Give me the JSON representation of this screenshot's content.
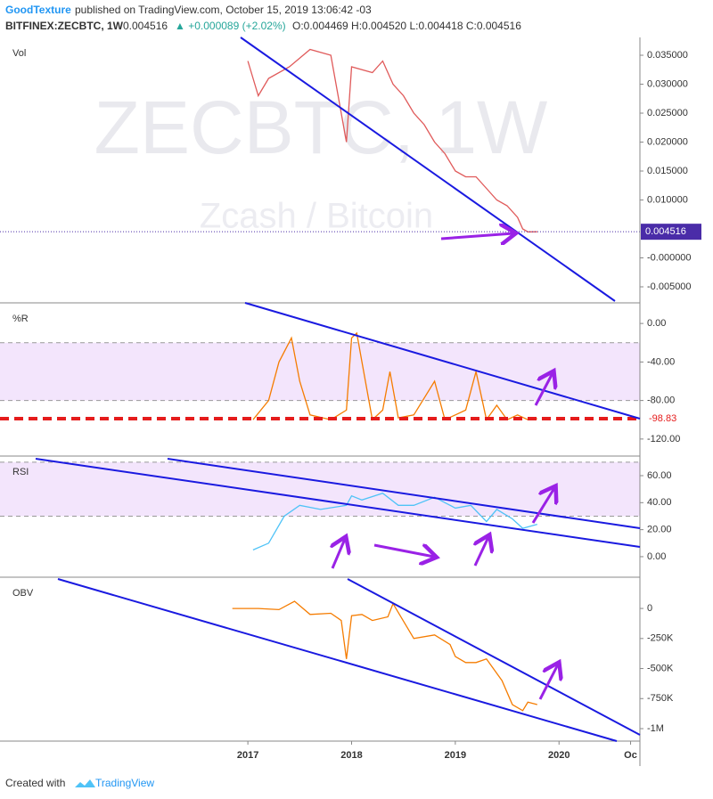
{
  "header": {
    "author": "GoodTexture",
    "published": "published on TradingView.com, October 15, 2019 13:06:42 -03",
    "symbol": "BITFINEX:ZECBTC, 1W",
    "last": "0.004516",
    "change": "▲ +0.000089 (+2.02%)",
    "ohlc": "O:0.004469 H:0.004520 L:0.004418 C:0.004516"
  },
  "watermark": {
    "symbol": "ZECBTC, 1W",
    "description": "Zcash / Bitcoin"
  },
  "footer": {
    "created": "Created with",
    "brand": "TradingView"
  },
  "chart_data": [
    {
      "type": "line",
      "title": "Vol",
      "last_value_style": "box",
      "x": [
        2017.0,
        2017.1,
        2017.2,
        2017.4,
        2017.6,
        2017.8,
        2017.95,
        2018.0,
        2018.2,
        2018.3,
        2018.4,
        2018.5,
        2018.6,
        2018.7,
        2018.8,
        2018.9,
        2019.0,
        2019.1,
        2019.2,
        2019.3,
        2019.4,
        2019.5,
        2019.6,
        2019.65,
        2019.7,
        2019.79
      ],
      "series": [
        {
          "name": "ZECBTC",
          "color": "#e05a5a",
          "values": [
            0.034,
            0.028,
            0.031,
            0.033,
            0.036,
            0.035,
            0.02,
            0.033,
            0.032,
            0.034,
            0.03,
            0.028,
            0.025,
            0.023,
            0.02,
            0.018,
            0.015,
            0.014,
            0.014,
            0.012,
            0.01,
            0.009,
            0.007,
            0.005,
            0.0045,
            0.004516
          ]
        }
      ],
      "ylim": [
        -0.00746,
        0.03808
      ],
      "yticks": [
        {
          "value": 0.035,
          "label": "0.035000"
        },
        {
          "value": 0.03,
          "label": "0.030000"
        },
        {
          "value": 0.025,
          "label": "0.025000"
        },
        {
          "value": 0.02,
          "label": "0.020000"
        },
        {
          "value": 0.015,
          "label": "0.015000"
        },
        {
          "value": 0.01,
          "label": "0.010000"
        },
        {
          "value": 0,
          "label": "-0.000000"
        },
        {
          "value": -0.005,
          "label": "-0.005000"
        }
      ]
    },
    {
      "type": "line",
      "title": "%R",
      "last_value_style": "red-dashed",
      "x": [
        2017.05,
        2017.2,
        2017.3,
        2017.42,
        2017.5,
        2017.6,
        2017.8,
        2017.95,
        2018.0,
        2018.05,
        2018.1,
        2018.2,
        2018.3,
        2018.37,
        2018.45,
        2018.6,
        2018.8,
        2018.9,
        2019.0,
        2019.1,
        2019.2,
        2019.3,
        2019.4,
        2019.5,
        2019.6,
        2019.7,
        2019.79
      ],
      "series": [
        {
          "name": "%R",
          "color": "#f57c00",
          "values": [
            -100,
            -80,
            -40,
            -15,
            -60,
            -95,
            -100,
            -90,
            -15,
            -10,
            -40,
            -100,
            -90,
            -50,
            -98,
            -95,
            -60,
            -100,
            -95,
            -90,
            -50,
            -100,
            -85,
            -100,
            -95,
            -100,
            -98.83
          ]
        }
      ],
      "bands": [
        -20,
        -80
      ],
      "band_color": "#f3e5fc",
      "ylim": [
        -137.7,
        21.4
      ],
      "yticks": [
        {
          "value": 0,
          "label": "0.00"
        },
        {
          "value": -40,
          "label": "-40.00"
        },
        {
          "value": -80,
          "label": "-80.00"
        },
        {
          "value": -120,
          "label": "-120.00"
        }
      ]
    },
    {
      "type": "line",
      "title": "RSI",
      "x": [
        2017.05,
        2017.2,
        2017.35,
        2017.5,
        2017.7,
        2017.95,
        2018.0,
        2018.1,
        2018.3,
        2018.45,
        2018.6,
        2018.8,
        2018.9,
        2019.0,
        2019.15,
        2019.3,
        2019.4,
        2019.55,
        2019.65,
        2019.79
      ],
      "series": [
        {
          "name": "RSI",
          "color": "#4fc3f7",
          "values": [
            5,
            10,
            30,
            38,
            35,
            38,
            45,
            42,
            47,
            38,
            38,
            44,
            40,
            36,
            38,
            26,
            35,
            28,
            21,
            24
          ]
        }
      ],
      "bands": [
        70,
        30
      ],
      "band_color": "#f3e5fc",
      "ylim": [
        -15.2,
        74.5
      ],
      "yticks": [
        {
          "value": 60,
          "label": "60.00"
        },
        {
          "value": 40,
          "label": "40.00"
        },
        {
          "value": 20,
          "label": "20.00"
        },
        {
          "value": 0,
          "label": "0.00"
        }
      ]
    },
    {
      "type": "line",
      "title": "OBV",
      "x": [
        2016.85,
        2017.1,
        2017.3,
        2017.45,
        2017.6,
        2017.8,
        2017.9,
        2017.95,
        2018.0,
        2018.1,
        2018.2,
        2018.35,
        2018.4,
        2018.6,
        2018.8,
        2018.95,
        2019.0,
        2019.1,
        2019.2,
        2019.3,
        2019.45,
        2019.55,
        2019.65,
        2019.7,
        2019.79
      ],
      "series": [
        {
          "name": "OBV",
          "color": "#f57c00",
          "values": [
            0,
            0,
            -10000,
            60000,
            -50000,
            -40000,
            -100000,
            -420000,
            -60000,
            -50000,
            -100000,
            -70000,
            40000,
            -250000,
            -220000,
            -300000,
            -400000,
            -450000,
            -450000,
            -420000,
            -600000,
            -800000,
            -850000,
            -780000,
            -800000
          ]
        }
      ],
      "ylim": [
        -1103700,
        260000
      ],
      "yticks": [
        0,
        {
          "value": -250000,
          "label": "-250K"
        },
        {
          "value": -500000,
          "label": "-500K"
        },
        {
          "value": -750000,
          "label": "-750K"
        },
        {
          "value": -1000000,
          "label": "-1M"
        }
      ],
      "xlim": [
        2014.61,
        2020.78
      ],
      "xticks": [
        2017,
        2018,
        2019,
        2020,
        {
          "value": 2020.69,
          "label": "Oc"
        }
      ]
    }
  ]
}
